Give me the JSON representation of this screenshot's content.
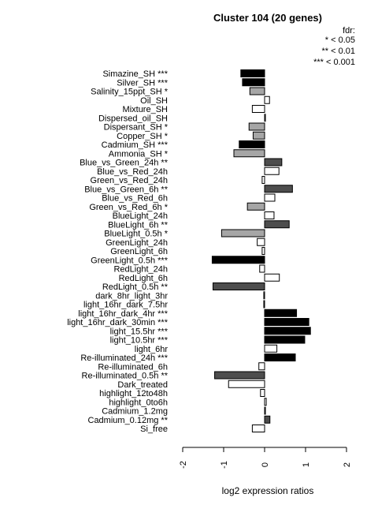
{
  "chart_data": {
    "type": "bar",
    "orientation": "horizontal",
    "title": "Cluster 104 (20 genes)",
    "xlabel": "log2 expression ratios",
    "xlim": [
      -2,
      2
    ],
    "xticks": [
      "-2",
      "-1",
      "0",
      "1",
      "2"
    ],
    "legend": {
      "title": "fdr:",
      "entries": [
        "* < 0.05",
        "** < 0.01",
        "*** < 0.001"
      ],
      "placement": "top-right"
    },
    "colors": {
      "none": "#ffffff",
      "p05": "#a6a6a6",
      "p01": "#4d4d4d",
      "p001": "#000000"
    },
    "categories": [
      "Simazine_SH ***",
      "Silver_SH ***",
      "Salinity_15ppt_SH *",
      "Oil_SH",
      "Mixture_SH",
      "Dispersed_oil_SH",
      "Dispersant_SH *",
      "Copper_SH *",
      "Cadmium_SH ***",
      "Ammonia_SH *",
      "Blue_vs_Green_24h **",
      "Blue_vs_Red_24h",
      "Green_vs_Red_24h",
      "Blue_vs_Green_6h **",
      "Blue_vs_Red_6h",
      "Green_vs_Red_6h *",
      "BlueLight_24h",
      "BlueLight_6h **",
      "BlueLight_0.5h *",
      "GreenLight_24h",
      "GreenLight_6h",
      "GreenLight_0.5h ***",
      "RedLight_24h",
      "RedLight_6h",
      "RedLight_0.5h **",
      "dark_8hr_light_3hr",
      "light_16hr_dark_7.5hr",
      "light_16hr_dark_4hr ***",
      "light_16hr_dark_30min ***",
      "light_15.5hr ***",
      "light_10.5hr ***",
      "light_6hr",
      "Re-illuminated_24h ***",
      "Re-illuminated_6h",
      "Re-illuminated_0.5h **",
      "Dark_treated",
      "highlight_12to48h",
      "highlight_0to6h",
      "Cadmium_1.2mg",
      "Cadmium_0.12mg **",
      "Si_free"
    ],
    "values": [
      -0.58,
      -0.54,
      -0.36,
      0.12,
      -0.3,
      0.02,
      -0.38,
      -0.28,
      -0.62,
      -0.75,
      0.42,
      0.35,
      -0.06,
      0.68,
      0.25,
      -0.42,
      0.23,
      0.6,
      -1.05,
      -0.18,
      -0.06,
      -1.28,
      -0.12,
      0.36,
      -1.26,
      -0.02,
      -0.02,
      0.78,
      1.08,
      1.12,
      0.98,
      0.3,
      0.75,
      -0.14,
      -1.22,
      -0.88,
      -0.1,
      0.04,
      0.02,
      0.13,
      -0.3
    ],
    "significance": [
      "p001",
      "p001",
      "p05",
      "none",
      "none",
      "none",
      "p05",
      "p05",
      "p001",
      "p05",
      "p01",
      "none",
      "none",
      "p01",
      "none",
      "p05",
      "none",
      "p01",
      "p05",
      "none",
      "none",
      "p001",
      "none",
      "none",
      "p01",
      "none",
      "none",
      "p001",
      "p001",
      "p001",
      "p001",
      "none",
      "p001",
      "none",
      "p01",
      "none",
      "none",
      "none",
      "none",
      "p01",
      "none"
    ]
  }
}
